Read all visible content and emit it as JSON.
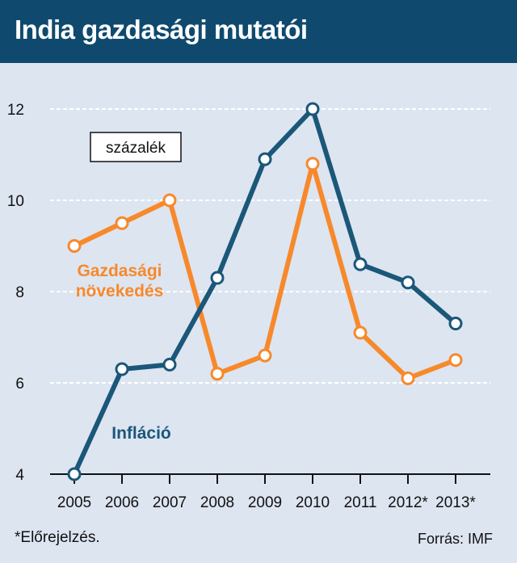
{
  "header": {
    "title": "India gazdasági mutatói"
  },
  "footnote": "*Előrejelzés.",
  "source": "Forrás: IMF",
  "chart_data": {
    "type": "line",
    "title": "India gazdasági mutatói",
    "unit_label": "százalék",
    "categories": [
      "2005",
      "2006",
      "2007",
      "2008",
      "2009",
      "2010",
      "2011",
      "2012*",
      "2013*"
    ],
    "series": [
      {
        "name": "Gazdasági növekedés",
        "label_lines": [
          "Gazdasági",
          "növekedés"
        ],
        "color": "#f7892b",
        "values": [
          9.0,
          9.5,
          10.0,
          6.2,
          6.6,
          10.8,
          7.1,
          6.1,
          6.5
        ]
      },
      {
        "name": "Infláció",
        "label_lines": [
          "Infláció"
        ],
        "color": "#1a5779",
        "values": [
          4.0,
          6.3,
          6.4,
          8.3,
          10.9,
          12.0,
          8.6,
          8.2,
          7.3
        ]
      }
    ],
    "yticks": [
      4,
      6,
      8,
      10,
      12
    ],
    "ylim": [
      4,
      12
    ],
    "grid": true,
    "grid_style": "dashed",
    "legend": "inline labels"
  }
}
